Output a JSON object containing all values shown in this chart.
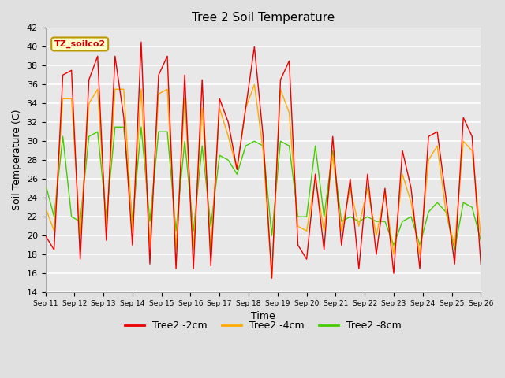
{
  "title": "Tree 2 Soil Temperature",
  "xlabel": "Time",
  "ylabel": "Soil Temperature (C)",
  "ylim": [
    14,
    42
  ],
  "yticks": [
    14,
    16,
    18,
    20,
    22,
    24,
    26,
    28,
    30,
    32,
    34,
    36,
    38,
    40,
    42
  ],
  "annotation": "TZ_soilco2",
  "background_color": "#e0e0e0",
  "plot_bg_color": "#e8e8e8",
  "grid_color": "white",
  "legend_entries": [
    "Tree2 -2cm",
    "Tree2 -4cm",
    "Tree2 -8cm"
  ],
  "legend_colors": [
    "#ee0000",
    "#ffaa00",
    "#44cc00"
  ],
  "x_labels": [
    "Sep 11",
    "Sep 12",
    "Sep 13",
    "Sep 14",
    "Sep 15",
    "Sep 16",
    "Sep 17",
    "Sep 18",
    "Sep 19",
    "Sep 20",
    "Sep 21",
    "Sep 22",
    "Sep 23",
    "Sep 24",
    "Sep 25",
    "Sep 26"
  ],
  "days": 16,
  "tree2_2cm": [
    20.0,
    18.5,
    37.0,
    37.5,
    17.5,
    36.5,
    39.0,
    19.5,
    39.0,
    32.5,
    19.0,
    40.5,
    17.0,
    37.0,
    39.0,
    16.5,
    37.0,
    16.5,
    36.5,
    16.8,
    34.5,
    32.0,
    27.0,
    33.5,
    40.0,
    30.5,
    15.5,
    36.5,
    38.5,
    19.0,
    17.5,
    26.5,
    18.5,
    30.5,
    19.0,
    26.0,
    16.5,
    26.5,
    18.0,
    25.0,
    16.0,
    29.0,
    25.0,
    16.5,
    30.5,
    31.0,
    24.0,
    17.0,
    32.5,
    30.5,
    17.0
  ],
  "tree2_4cm": [
    23.0,
    20.5,
    34.5,
    34.5,
    20.0,
    34.0,
    35.5,
    21.0,
    35.5,
    35.5,
    20.5,
    35.5,
    19.0,
    35.0,
    35.5,
    18.5,
    34.5,
    18.5,
    33.5,
    18.5,
    33.5,
    30.5,
    27.0,
    33.5,
    36.0,
    29.0,
    15.5,
    35.5,
    33.0,
    21.0,
    20.5,
    26.0,
    20.5,
    28.5,
    20.5,
    25.0,
    21.0,
    25.0,
    20.0,
    24.5,
    18.0,
    26.5,
    23.5,
    18.0,
    28.0,
    29.5,
    22.5,
    19.0,
    30.0,
    29.0,
    20.0
  ],
  "tree2_8cm": [
    25.5,
    22.0,
    30.5,
    22.0,
    21.5,
    30.5,
    31.0,
    22.0,
    31.5,
    31.5,
    21.5,
    31.5,
    21.5,
    31.0,
    31.0,
    20.5,
    30.0,
    20.5,
    29.5,
    21.0,
    28.5,
    28.0,
    26.5,
    29.5,
    30.0,
    29.5,
    20.0,
    30.0,
    29.5,
    22.0,
    22.0,
    29.5,
    22.0,
    29.0,
    21.5,
    22.0,
    21.5,
    22.0,
    21.5,
    21.5,
    19.0,
    21.5,
    22.0,
    19.0,
    22.5,
    23.5,
    22.5,
    18.5,
    23.5,
    23.0,
    19.5
  ]
}
